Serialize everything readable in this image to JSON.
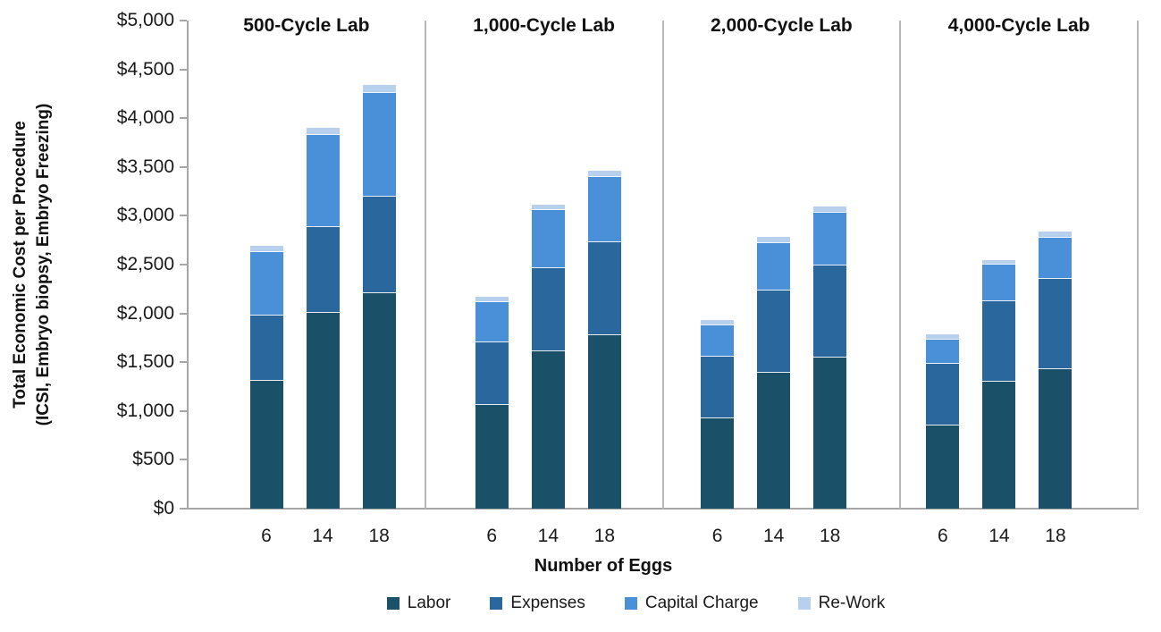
{
  "chart_data": {
    "type": "bar",
    "stacked": true,
    "grid": false,
    "legend_position": "bottom",
    "ylabel_line1": "Total Economic Cost per Procedure",
    "ylabel_line2": "(ICSI, Embryo biopsy, Embryo Freezing)",
    "xlabel": "Number of Eggs",
    "ylim": [
      0,
      5000
    ],
    "ytick_step": 500,
    "ytick_labels": [
      "$0",
      "$500",
      "$1,000",
      "$1,500",
      "$2,000",
      "$2,500",
      "$3,000",
      "$3,500",
      "$4,000",
      "$4,500",
      "$5,000"
    ],
    "categories": [
      "6",
      "14",
      "18"
    ],
    "legend": [
      {
        "name": "Labor",
        "color": "#1b5168"
      },
      {
        "name": "Expenses",
        "color": "#2a679d"
      },
      {
        "name": "Capital Charge",
        "color": "#4a90d8"
      },
      {
        "name": "Re-Work",
        "color": "#b6d0ee"
      }
    ],
    "panels": [
      {
        "label": "500-Cycle Lab",
        "series": [
          {
            "name": "Labor",
            "values": [
              1320,
              2010,
              2220
            ]
          },
          {
            "name": "Expenses",
            "values": [
              665,
              880,
              985
            ]
          },
          {
            "name": "Capital Charge",
            "values": [
              655,
              945,
              1065
            ]
          },
          {
            "name": "Re-Work",
            "values": [
              55,
              65,
              70
            ]
          }
        ]
      },
      {
        "label": "1,000-Cycle Lab",
        "series": [
          {
            "name": "Labor",
            "values": [
              1070,
              1625,
              1790
            ]
          },
          {
            "name": "Expenses",
            "values": [
              640,
              850,
              945
            ]
          },
          {
            "name": "Capital Charge",
            "values": [
              415,
              590,
              675
            ]
          },
          {
            "name": "Re-Work",
            "values": [
              45,
              50,
              55
            ]
          }
        ]
      },
      {
        "label": "2,000-Cycle Lab",
        "series": [
          {
            "name": "Labor",
            "values": [
              935,
              1405,
              1560
            ]
          },
          {
            "name": "Expenses",
            "values": [
              635,
              840,
              940
            ]
          },
          {
            "name": "Capital Charge",
            "values": [
              315,
              480,
              540
            ]
          },
          {
            "name": "Re-Work",
            "values": [
              45,
              55,
              55
            ]
          }
        ]
      },
      {
        "label": "4,000-Cycle Lab",
        "series": [
          {
            "name": "Labor",
            "values": [
              860,
              1305,
              1440
            ]
          },
          {
            "name": "Expenses",
            "values": [
              630,
              830,
              925
            ]
          },
          {
            "name": "Capital Charge",
            "values": [
              250,
              370,
              415
            ]
          },
          {
            "name": "Re-Work",
            "values": [
              45,
              45,
              55
            ]
          }
        ]
      }
    ],
    "axis_color": "#a6a6a6"
  }
}
